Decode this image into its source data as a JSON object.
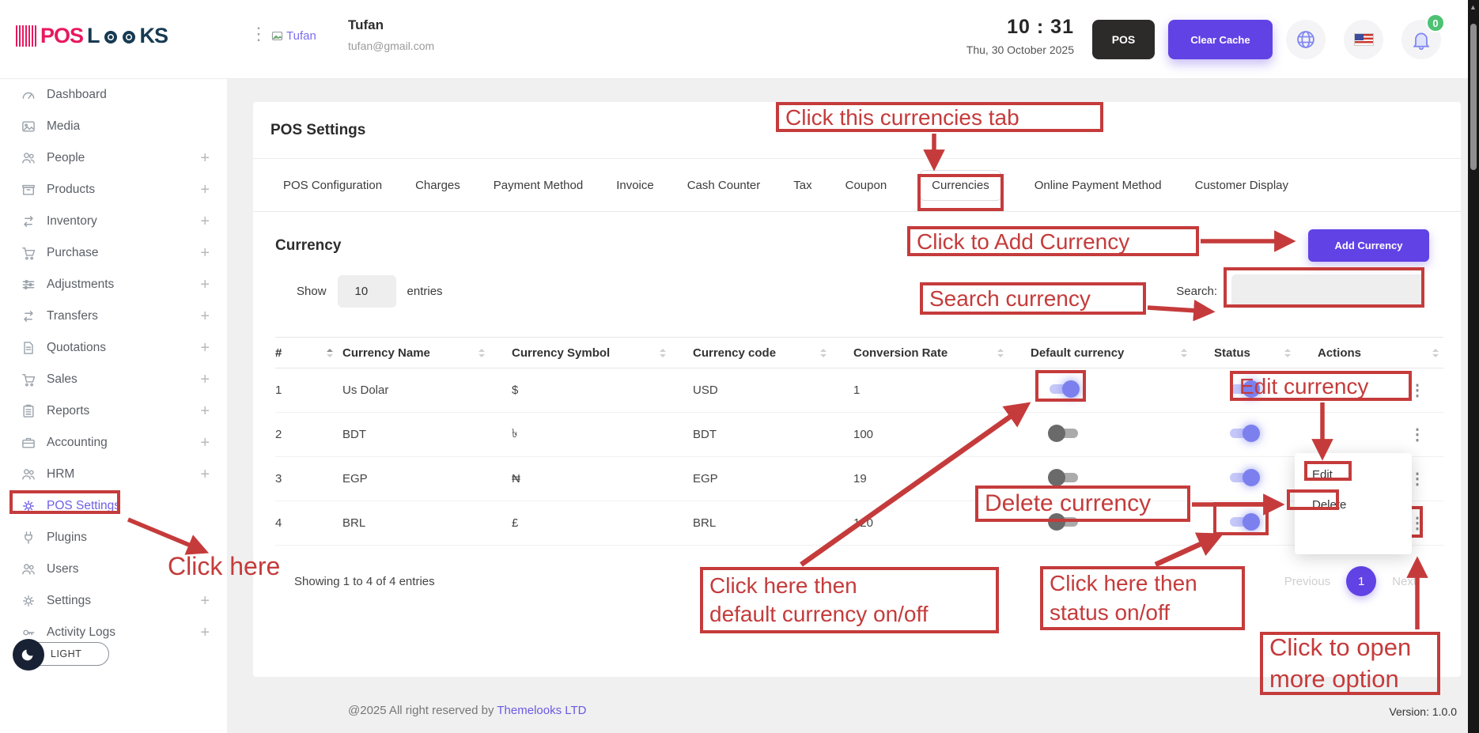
{
  "header": {
    "logo_pos": "POS",
    "logo_l": "L",
    "logo_ks": "KS",
    "user_name": "Tufan",
    "user_email": "tufan@gmail.com",
    "avatar_alt": "Tufan",
    "time": "10 : 31",
    "date": "Thu, 30 October 2025",
    "pos_button": "POS",
    "clear_cache_button": "Clear Cache",
    "notification_count": "0"
  },
  "sidebar": {
    "items": [
      {
        "label": "Dashboard",
        "icon": "gauge",
        "expandable": false,
        "active": false
      },
      {
        "label": "Media",
        "icon": "image",
        "expandable": false,
        "active": false
      },
      {
        "label": "People",
        "icon": "users",
        "expandable": true,
        "active": false
      },
      {
        "label": "Products",
        "icon": "box",
        "expandable": true,
        "active": false
      },
      {
        "label": "Inventory",
        "icon": "arrows",
        "expandable": true,
        "active": false
      },
      {
        "label": "Purchase",
        "icon": "cart",
        "expandable": true,
        "active": false
      },
      {
        "label": "Adjustments",
        "icon": "sliders",
        "expandable": true,
        "active": false
      },
      {
        "label": "Transfers",
        "icon": "arrows",
        "expandable": true,
        "active": false
      },
      {
        "label": "Quotations",
        "icon": "file",
        "expandable": true,
        "active": false
      },
      {
        "label": "Sales",
        "icon": "cart",
        "expandable": true,
        "active": false
      },
      {
        "label": "Reports",
        "icon": "clipboard",
        "expandable": true,
        "active": false
      },
      {
        "label": "Accounting",
        "icon": "briefcase",
        "expandable": true,
        "active": false
      },
      {
        "label": "HRM",
        "icon": "users",
        "expandable": true,
        "active": false
      },
      {
        "label": "POS Settings",
        "icon": "gear",
        "expandable": false,
        "active": true
      },
      {
        "label": "Plugins",
        "icon": "plug",
        "expandable": false,
        "active": false
      },
      {
        "label": "Users",
        "icon": "users",
        "expandable": false,
        "active": false
      },
      {
        "label": "Settings",
        "icon": "gear",
        "expandable": true,
        "active": false
      },
      {
        "label": "Activity Logs",
        "icon": "key",
        "expandable": true,
        "active": false
      }
    ],
    "theme_toggle": "LIGHT"
  },
  "page": {
    "title": "POS Settings",
    "tabs": [
      "POS Configuration",
      "Charges",
      "Payment Method",
      "Invoice",
      "Cash Counter",
      "Tax",
      "Coupon",
      "Currencies",
      "Online Payment Method",
      "Customer Display"
    ],
    "active_tab": "Currencies"
  },
  "currency_panel": {
    "heading": "Currency",
    "add_button": "Add Currency",
    "show_label": "Show",
    "per_page": "10",
    "entries_label": "entries",
    "search_label": "Search:",
    "search_value": "",
    "table": {
      "columns": [
        "#",
        "Currency Name",
        "Currency Symbol",
        "Currency code",
        "Conversion Rate",
        "Default currency",
        "Status",
        "Actions"
      ],
      "rows": [
        {
          "num": "1",
          "name": "Us Dolar",
          "symbol": "$",
          "code": "USD",
          "rate": "1",
          "default_on": true,
          "status_on": true
        },
        {
          "num": "2",
          "name": "BDT",
          "symbol": "৳",
          "code": "BDT",
          "rate": "100",
          "default_on": false,
          "status_on": true
        },
        {
          "num": "3",
          "name": "EGP",
          "symbol": "₦",
          "code": "EGP",
          "rate": "19",
          "default_on": false,
          "status_on": true
        },
        {
          "num": "4",
          "name": "BRL",
          "symbol": "£",
          "code": "BRL",
          "rate": "120",
          "default_on": false,
          "status_on": true
        }
      ]
    },
    "summary": "Showing 1 to 4 of 4 entries",
    "pagination": {
      "previous": "Previous",
      "current": "1",
      "next": "Next"
    }
  },
  "action_menu": {
    "items": [
      "Edit",
      "Delete"
    ]
  },
  "annotations": {
    "click_tab": "Click this currencies tab",
    "add_currency": "Click to Add Currency",
    "search": "Search currency",
    "click_here": "Click here",
    "edit": "Edit currency",
    "delete": "Delete currency",
    "default_line1": "Click here then",
    "default_line2": "default currency on/off",
    "status_line1": "Click here then",
    "status_line2": "status on/off",
    "more_line1": "Click to open",
    "more_line2": "more option"
  },
  "footer": {
    "copyright": "@2025 All right reserved by ",
    "company": "Themelooks LTD",
    "version": "Version: 1.0.0"
  },
  "colors": {
    "accent": "#6142e4",
    "annotation_red": "#c53b3b",
    "toggle_on": "#7b80ee",
    "toggle_off": "#6a6a6a",
    "logo_pink": "#e8195e",
    "logo_navy": "#173a53",
    "badge_green": "#4cc272"
  }
}
